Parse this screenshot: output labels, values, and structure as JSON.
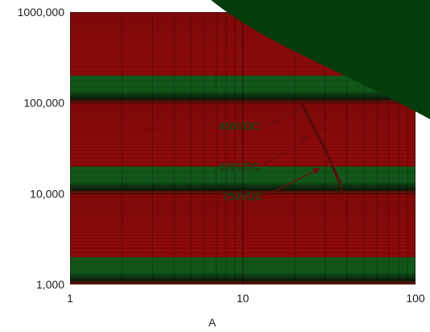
{
  "chart_data": {
    "type": "line",
    "title": "",
    "xlabel": "A",
    "ylabel": "",
    "x_scale": "log",
    "y_scale": "log",
    "xlim": [
      1,
      100
    ],
    "ylim": [
      1000,
      1000000
    ],
    "x_ticks": [
      {
        "value": 1,
        "label": "1"
      },
      {
        "value": 10,
        "label": "10"
      },
      {
        "value": 100,
        "label": "100"
      }
    ],
    "y_ticks": [
      {
        "value": 1000,
        "label": "1,000"
      },
      {
        "value": 10000,
        "label": "10,000"
      },
      {
        "value": 100000,
        "label": "100,000"
      },
      {
        "value": 1000000,
        "label": "1000,000"
      }
    ],
    "grid": true,
    "series": [
      {
        "name": "450VDC",
        "x": [
          21,
          28,
          35
        ],
        "y": [
          110000,
          38000,
          16000
        ]
      },
      {
        "name": "600VDC",
        "x": [
          22,
          30,
          37
        ],
        "y": [
          100000,
          32000,
          13000
        ]
      },
      {
        "name": "750VDC",
        "x": [
          23,
          31,
          38
        ],
        "y": [
          90000,
          27000,
          10000
        ]
      }
    ],
    "annotations": [
      {
        "text": "450VDC",
        "label_at": [
          9.5,
          50000
        ],
        "arrow_to": [
          22,
          85000
        ]
      },
      {
        "text": "600VDC",
        "label_at": [
          9.5,
          18000
        ],
        "arrow_to": [
          24,
          42000
        ]
      },
      {
        "text": "750VDC",
        "label_at": [
          10,
          8500
        ],
        "arrow_to": [
          28,
          19000
        ]
      }
    ],
    "colors": {
      "band_red": "#8b0a0a",
      "band_green": "#12561a",
      "corner": "#053c0c",
      "curve": "#5a0b0b",
      "arrow": "#6e0d0d",
      "label": "#1f3d12"
    }
  }
}
